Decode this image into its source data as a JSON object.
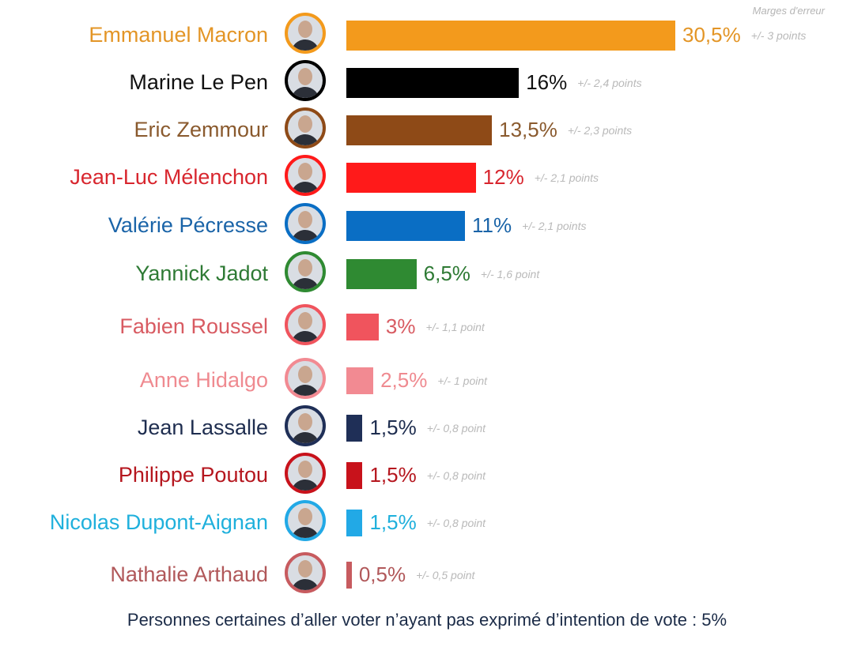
{
  "chart_data": {
    "type": "bar",
    "orientation": "horizontal",
    "margin_header": "Marges d'erreur",
    "footnote": "Personnes certaines d’aller voter n’ayant pas exprimé d’intention de vote : 5%",
    "categories": [
      "Emmanuel Macron",
      "Marine Le Pen",
      "Eric Zemmour",
      "Jean-Luc Mélenchon",
      "Valérie Pécresse",
      "Yannick Jadot",
      "Fabien Roussel",
      "Anne Hidalgo",
      "Jean Lassalle",
      "Philippe Poutou",
      "Nicolas Dupont-Aignan",
      "Nathalie Arthaud"
    ],
    "values": [
      30.5,
      16,
      13.5,
      12,
      11,
      6.5,
      3,
      2.5,
      1.5,
      1.5,
      1.5,
      0.5
    ],
    "value_labels": [
      "30,5%",
      "16%",
      "13,5%",
      "12%",
      "11%",
      "6,5%",
      "3%",
      "2,5%",
      "1,5%",
      "1,5%",
      "1,5%",
      "0,5%"
    ],
    "margin_labels": [
      "+/- 3 points",
      "+/- 2,4 points",
      "+/- 2,3 points",
      "+/- 2,1 points",
      "+/- 2,1 points",
      "+/- 1,6 point",
      "+/- 1,1 point",
      "+/- 1 point",
      "+/- 0,8 point",
      "+/- 0,8 point",
      "+/- 0,8 point",
      "+/- 0,5 point"
    ],
    "colors": [
      "#f39a1c",
      "#000000",
      "#8e4a17",
      "#ff1a1a",
      "#0a6ec4",
      "#2f8a32",
      "#f0545d",
      "#f28a92",
      "#1f2f57",
      "#c8121b",
      "#22a9e6",
      "#c75b5f"
    ],
    "name_colors": [
      "#e39526",
      "#111111",
      "#8a5a2e",
      "#d8262e",
      "#1a64a8",
      "#2e7a34",
      "#d85b62",
      "#ef8a90",
      "#1e2d4f",
      "#b5161e",
      "#1fb0dc",
      "#b1585a"
    ],
    "icons": [
      "portrait-icon"
    ]
  }
}
